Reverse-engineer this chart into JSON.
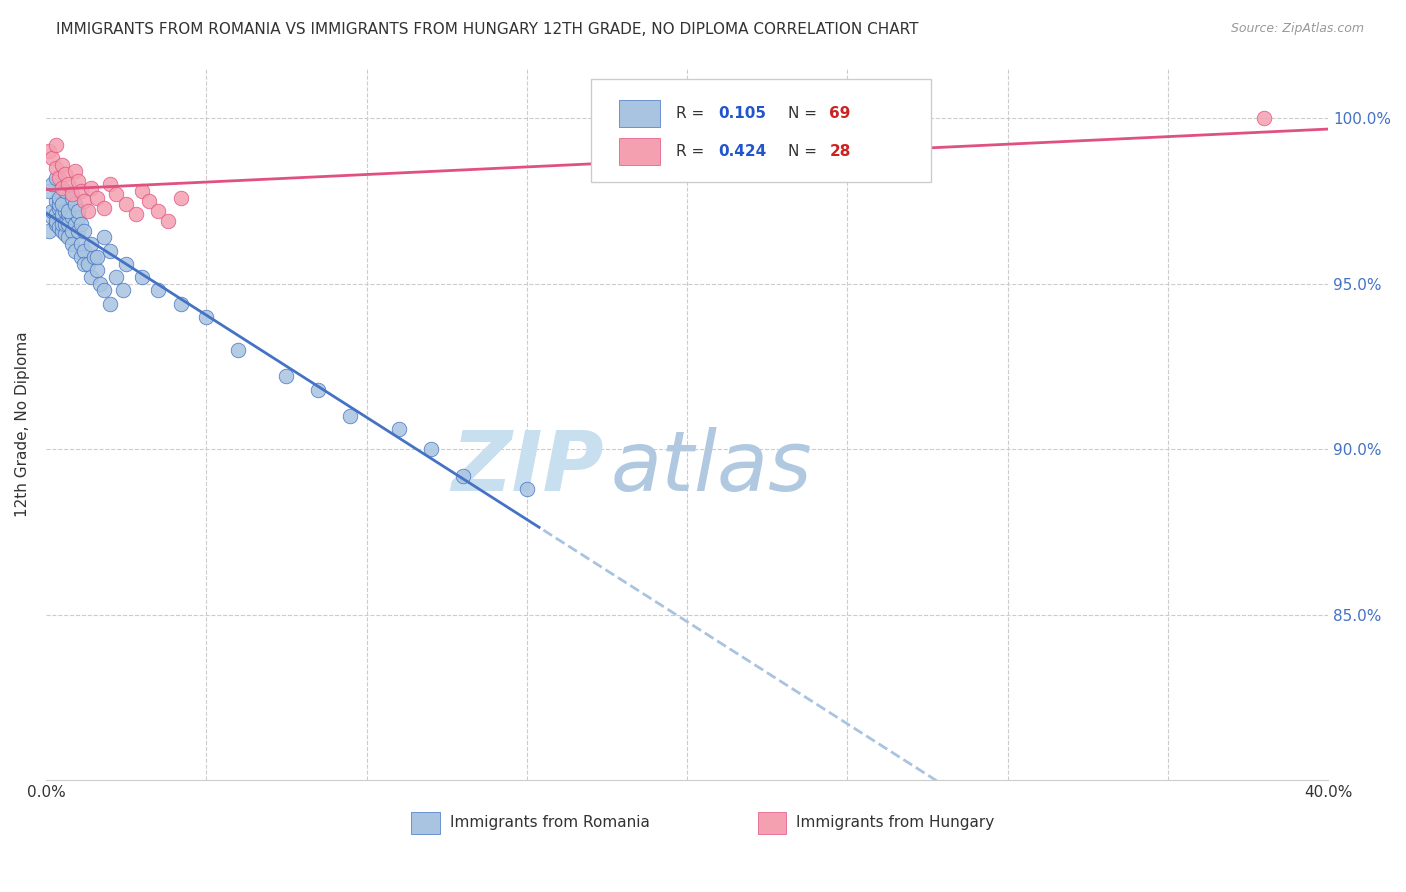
{
  "title": "IMMIGRANTS FROM ROMANIA VS IMMIGRANTS FROM HUNGARY 12TH GRADE, NO DIPLOMA CORRELATION CHART",
  "source": "Source: ZipAtlas.com",
  "ylabel": "12th Grade, No Diploma",
  "xlim": [
    0.0,
    0.4
  ],
  "ylim": [
    0.8,
    1.015
  ],
  "romania_R": 0.105,
  "romania_N": 69,
  "hungary_R": 0.424,
  "hungary_N": 28,
  "romania_color": "#a8c4e0",
  "hungary_color": "#f4a0b0",
  "romania_line_color": "#4472c4",
  "hungary_line_color": "#e05080",
  "dashed_line_color": "#a8c4e0",
  "legend_R_color": "#2255cc",
  "legend_N_color": "#cc2222",
  "watermark_color": "#dceefa",
  "romania_x": [
    0.001,
    0.002,
    0.002,
    0.003,
    0.003,
    0.003,
    0.003,
    0.004,
    0.004,
    0.004,
    0.005,
    0.005,
    0.005,
    0.005,
    0.006,
    0.006,
    0.006,
    0.007,
    0.007,
    0.007,
    0.008,
    0.008,
    0.008,
    0.009,
    0.009,
    0.01,
    0.01,
    0.011,
    0.011,
    0.012,
    0.012,
    0.013,
    0.014,
    0.015,
    0.016,
    0.017,
    0.018,
    0.02,
    0.022,
    0.024,
    0.001,
    0.002,
    0.003,
    0.004,
    0.005,
    0.006,
    0.007,
    0.008,
    0.009,
    0.01,
    0.011,
    0.012,
    0.014,
    0.016,
    0.018,
    0.02,
    0.025,
    0.03,
    0.035,
    0.042,
    0.05,
    0.06,
    0.075,
    0.085,
    0.095,
    0.11,
    0.12,
    0.13,
    0.15
  ],
  "romania_y": [
    0.966,
    0.97,
    0.972,
    0.968,
    0.975,
    0.971,
    0.969,
    0.973,
    0.967,
    0.974,
    0.97,
    0.966,
    0.971,
    0.968,
    0.972,
    0.965,
    0.968,
    0.971,
    0.968,
    0.964,
    0.97,
    0.966,
    0.962,
    0.968,
    0.96,
    0.97,
    0.966,
    0.962,
    0.958,
    0.96,
    0.956,
    0.956,
    0.952,
    0.958,
    0.954,
    0.95,
    0.948,
    0.944,
    0.952,
    0.948,
    0.978,
    0.98,
    0.982,
    0.976,
    0.974,
    0.978,
    0.972,
    0.976,
    0.974,
    0.972,
    0.968,
    0.966,
    0.962,
    0.958,
    0.964,
    0.96,
    0.956,
    0.952,
    0.948,
    0.944,
    0.94,
    0.93,
    0.922,
    0.918,
    0.91,
    0.906,
    0.9,
    0.892,
    0.888
  ],
  "hungary_x": [
    0.001,
    0.002,
    0.003,
    0.003,
    0.004,
    0.005,
    0.005,
    0.006,
    0.007,
    0.008,
    0.009,
    0.01,
    0.011,
    0.012,
    0.013,
    0.014,
    0.016,
    0.018,
    0.02,
    0.022,
    0.025,
    0.028,
    0.03,
    0.032,
    0.035,
    0.038,
    0.042,
    0.38
  ],
  "hungary_y": [
    0.99,
    0.988,
    0.985,
    0.992,
    0.982,
    0.979,
    0.986,
    0.983,
    0.98,
    0.977,
    0.984,
    0.981,
    0.978,
    0.975,
    0.972,
    0.979,
    0.976,
    0.973,
    0.98,
    0.977,
    0.974,
    0.971,
    0.978,
    0.975,
    0.972,
    0.969,
    0.976,
    1.0
  ]
}
